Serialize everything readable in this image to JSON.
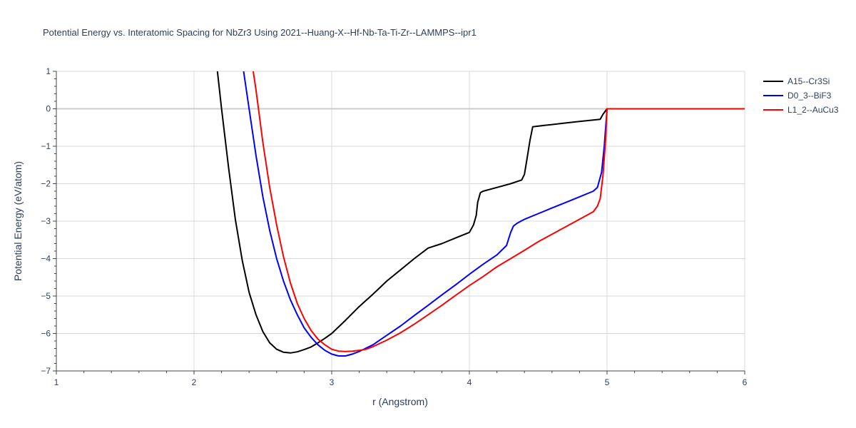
{
  "chart_data": {
    "type": "line",
    "title": "Potential Energy vs. Interatomic Spacing for NbZr3 Using 2021--Huang-X--Hf-Nb-Ta-Ti-Zr--LAMMPS--ipr1",
    "xlabel": "r (Angstrom)",
    "ylabel": "Potential Energy (eV/atom)",
    "xlim": [
      1,
      6
    ],
    "ylim": [
      -7,
      1
    ],
    "xticks": [
      "1",
      "2",
      "3",
      "4",
      "5",
      "6"
    ],
    "yticks": [
      "1",
      "0",
      "−1",
      "−2",
      "−3",
      "−4",
      "−5",
      "−6",
      "−7"
    ],
    "grid": true,
    "legend_position": "top-right",
    "series": [
      {
        "name": "A15--Cr3Si",
        "color": "#000000",
        "x": [
          2.17,
          2.2,
          2.25,
          2.3,
          2.35,
          2.4,
          2.45,
          2.5,
          2.55,
          2.6,
          2.65,
          2.7,
          2.75,
          2.8,
          2.85,
          2.9,
          2.95,
          3.0,
          3.1,
          3.2,
          3.3,
          3.4,
          3.5,
          3.6,
          3.7,
          3.8,
          3.9,
          4.0,
          4.03,
          4.05,
          4.06,
          4.08,
          4.1,
          4.2,
          4.3,
          4.38,
          4.4,
          4.42,
          4.44,
          4.46,
          4.48,
          4.6,
          4.7,
          4.8,
          4.9,
          4.95,
          4.97,
          5.0,
          5.5,
          6.0
        ],
        "y": [
          1.0,
          0.0,
          -1.55,
          -2.95,
          -4.05,
          -4.9,
          -5.5,
          -5.95,
          -6.25,
          -6.42,
          -6.5,
          -6.52,
          -6.49,
          -6.43,
          -6.36,
          -6.25,
          -6.13,
          -6.0,
          -5.65,
          -5.28,
          -4.95,
          -4.6,
          -4.3,
          -4.0,
          -3.72,
          -3.6,
          -3.45,
          -3.3,
          -3.1,
          -2.85,
          -2.5,
          -2.24,
          -2.2,
          -2.1,
          -2.0,
          -1.9,
          -1.75,
          -1.3,
          -0.85,
          -0.48,
          -0.47,
          -0.42,
          -0.38,
          -0.34,
          -0.3,
          -0.28,
          -0.15,
          0.0,
          0.0,
          0.0
        ]
      },
      {
        "name": "D0_3--BiF3",
        "color": "#0000ff",
        "x": [
          2.36,
          2.4,
          2.45,
          2.5,
          2.55,
          2.6,
          2.65,
          2.7,
          2.75,
          2.8,
          2.85,
          2.9,
          2.95,
          3.0,
          3.05,
          3.1,
          3.15,
          3.2,
          3.3,
          3.4,
          3.5,
          3.6,
          3.7,
          3.8,
          3.9,
          4.0,
          4.1,
          4.2,
          4.27,
          4.3,
          4.32,
          4.35,
          4.4,
          4.5,
          4.6,
          4.7,
          4.8,
          4.9,
          4.93,
          4.96,
          4.98,
          5.0,
          5.5,
          6.0
        ],
        "y": [
          1.0,
          0.0,
          -1.25,
          -2.35,
          -3.25,
          -4.0,
          -4.6,
          -5.1,
          -5.5,
          -5.85,
          -6.1,
          -6.3,
          -6.45,
          -6.55,
          -6.6,
          -6.6,
          -6.55,
          -6.48,
          -6.3,
          -6.05,
          -5.8,
          -5.52,
          -5.25,
          -4.97,
          -4.7,
          -4.42,
          -4.15,
          -3.9,
          -3.65,
          -3.3,
          -3.13,
          -3.05,
          -2.95,
          -2.8,
          -2.65,
          -2.5,
          -2.35,
          -2.2,
          -2.1,
          -1.7,
          -1.0,
          0.0,
          0.0,
          0.0
        ]
      },
      {
        "name": "L1_2--AuCu3",
        "color": "#ff0000",
        "x": [
          2.43,
          2.45,
          2.5,
          2.55,
          2.6,
          2.65,
          2.7,
          2.75,
          2.8,
          2.85,
          2.9,
          2.95,
          3.0,
          3.05,
          3.1,
          3.15,
          3.2,
          3.25,
          3.3,
          3.4,
          3.5,
          3.6,
          3.7,
          3.8,
          3.9,
          4.0,
          4.1,
          4.2,
          4.3,
          4.4,
          4.5,
          4.6,
          4.7,
          4.8,
          4.9,
          4.93,
          4.95,
          4.97,
          4.99,
          5.0,
          5.5,
          6.0
        ],
        "y": [
          1.0,
          0.5,
          -0.9,
          -2.1,
          -3.1,
          -3.95,
          -4.65,
          -5.2,
          -5.6,
          -5.92,
          -6.15,
          -6.3,
          -6.42,
          -6.47,
          -6.48,
          -6.47,
          -6.45,
          -6.42,
          -6.35,
          -6.18,
          -5.98,
          -5.75,
          -5.5,
          -5.25,
          -4.98,
          -4.72,
          -4.48,
          -4.22,
          -4.0,
          -3.78,
          -3.55,
          -3.35,
          -3.15,
          -2.95,
          -2.75,
          -2.6,
          -2.4,
          -1.8,
          -0.8,
          0.0,
          0.0,
          0.0
        ]
      }
    ]
  }
}
